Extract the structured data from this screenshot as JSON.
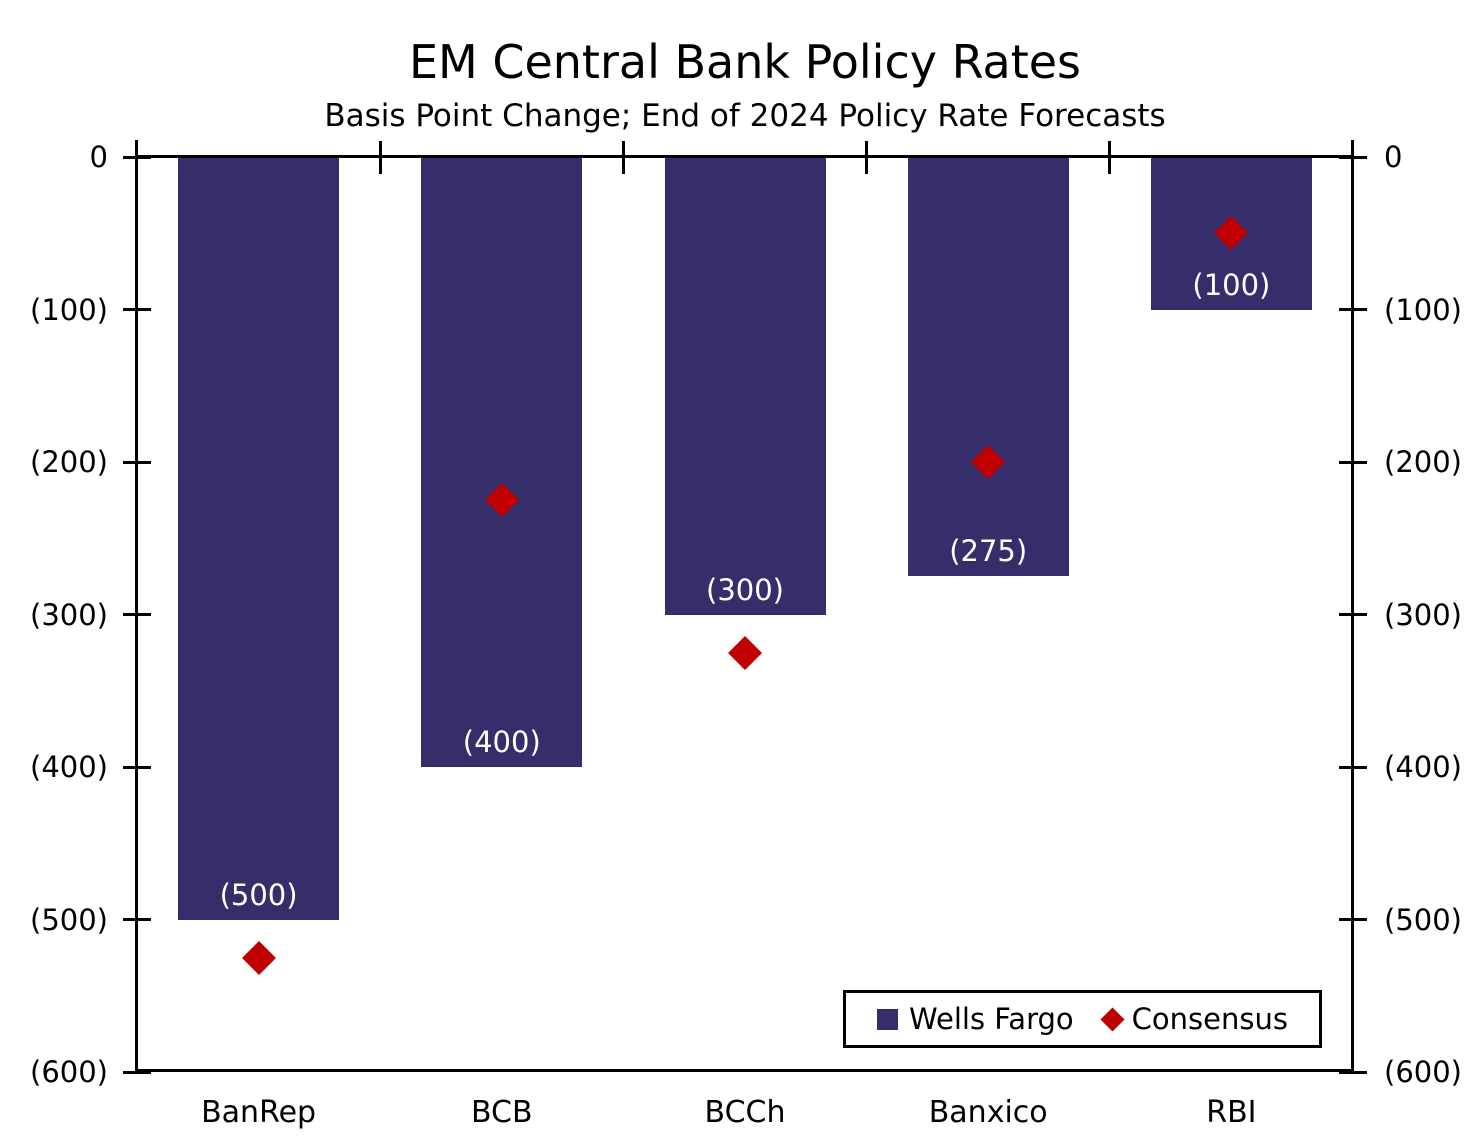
{
  "title": "EM Central Bank Policy Rates",
  "subtitle": "Basis Point Change; End of 2024 Policy Rate Forecasts",
  "colors": {
    "bar": "#362E6B",
    "consensus": "#C00000",
    "axis": "#000000",
    "bar_label_text": "#FFFFFF",
    "background": "#FFFFFF"
  },
  "legend": {
    "items": [
      {
        "label": "Wells Fargo",
        "marker": "square",
        "color": "#362E6B"
      },
      {
        "label": "Consensus",
        "marker": "diamond",
        "color": "#C00000"
      }
    ]
  },
  "chart_data": {
    "type": "bar",
    "title": "EM Central Bank Policy Rates",
    "subtitle": "Basis Point Change; End of 2024 Policy Rate Forecasts",
    "categories": [
      "BanRep",
      "BCB",
      "BCCh",
      "Banxico",
      "RBI"
    ],
    "series": [
      {
        "name": "Wells Fargo",
        "type": "bar",
        "color": "#362E6B",
        "values": [
          -500,
          -400,
          -300,
          -275,
          -100
        ],
        "data_labels": [
          "(500)",
          "(400)",
          "(300)",
          "(275)",
          "(100)"
        ]
      },
      {
        "name": "Consensus",
        "type": "scatter",
        "marker": "diamond",
        "color": "#C00000",
        "values": [
          -525,
          -225,
          -325,
          -200,
          -50
        ]
      }
    ],
    "ylim": [
      -600,
      0
    ],
    "yticks": [
      {
        "value": 0,
        "label": "0"
      },
      {
        "value": -100,
        "label": "(100)"
      },
      {
        "value": -200,
        "label": "(200)"
      },
      {
        "value": -300,
        "label": "(300)"
      },
      {
        "value": -400,
        "label": "(400)"
      },
      {
        "value": -500,
        "label": "(500)"
      },
      {
        "value": -600,
        "label": "(600)"
      }
    ],
    "y_axis_sides": "both",
    "grid": false,
    "legend_position": "inside-bottom-right"
  }
}
